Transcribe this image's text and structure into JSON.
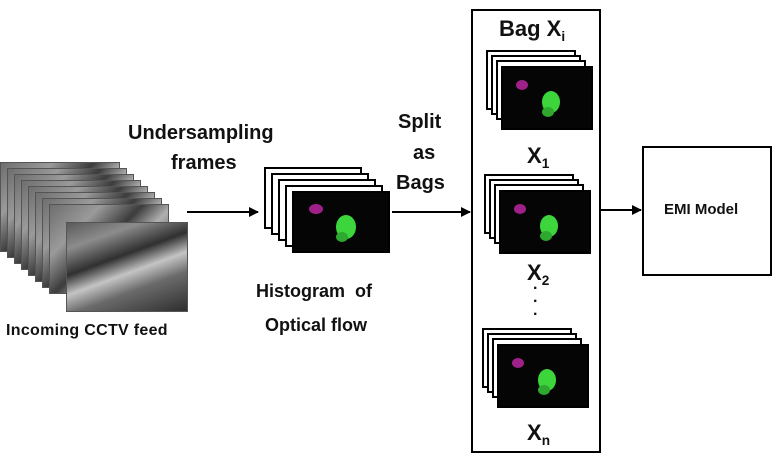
{
  "diagram": {
    "labels": {
      "incoming_feed": "Incoming CCTV feed",
      "undersampling_line1": "Undersampling",
      "undersampling_line2": "frames",
      "histogram_line1": "Histogram  of",
      "histogram_line2": "Optical flow",
      "split_line1": "Split",
      "split_line2": "as",
      "split_line3": "Bags",
      "bag_title_main": "Bag X",
      "bag_title_sub": "i",
      "emi_model": "EMI Model",
      "bag_x": "X",
      "x1_sub": "1",
      "x2_sub": "2",
      "xn_sub": "n",
      "ellipsis_dots": "·\n·\n·"
    },
    "colors": {
      "line": "#000000",
      "frame_bg": "#050505",
      "flow_green": "#3cd63c",
      "flow_magenta": "#a0208a"
    }
  }
}
